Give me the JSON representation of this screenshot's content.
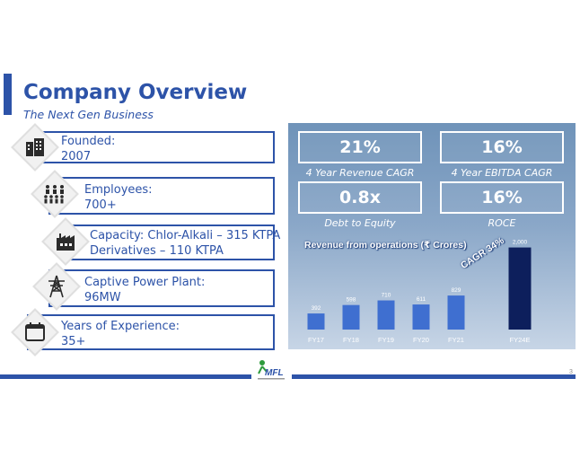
{
  "slide": {
    "title": "Company Overview",
    "subtitle": "The Next Gen Business",
    "page_number": "3",
    "logo_text": "MFL"
  },
  "facts": [
    {
      "icon": "buildings-icon",
      "line1": "Founded:",
      "line2": "2007"
    },
    {
      "icon": "people-icon",
      "line1": "Employees:",
      "line2": "700+"
    },
    {
      "icon": "factory-icon",
      "line1": "Capacity: Chlor-Alkali – 315 KTPA",
      "line2": "Derivatives – 110 KTPA"
    },
    {
      "icon": "power-tower-icon",
      "line1": "Captive Power Plant:",
      "line2": "96MW"
    },
    {
      "icon": "calendar-icon",
      "line1": "Years of Experience:",
      "line2": "35+"
    }
  ],
  "kpis": [
    {
      "value": "21%",
      "label": "4 Year Revenue CAGR"
    },
    {
      "value": "16%",
      "label": "4 Year EBITDA CAGR"
    },
    {
      "value": "0.8x",
      "label": "Debt to Equity"
    },
    {
      "value": "16%",
      "label": "ROCE"
    }
  ],
  "colors": {
    "brand_blue": "#2d53a8",
    "bar_blue": "#3f6fd0",
    "bar_dark": "#0d1f5c",
    "panel": "#8aa7c8"
  },
  "chart_data": {
    "type": "bar",
    "title": "Revenue from operations (₹ Crores)",
    "annotation": "CAGR 34%",
    "categories": [
      "FY17",
      "FY18",
      "FY19",
      "FY20",
      "FY21",
      "FY24E"
    ],
    "values": [
      392,
      598,
      710,
      611,
      829,
      2000
    ],
    "value_labels": [
      "392",
      "598",
      "710",
      "611",
      "829",
      "2,000"
    ],
    "ylim": [
      0,
      2100
    ],
    "grid": false
  }
}
